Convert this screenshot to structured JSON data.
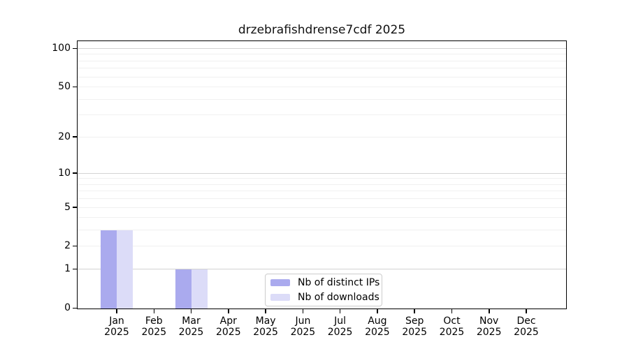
{
  "title": "drzebrafishdrense7cdf 2025",
  "chart_data": {
    "type": "bar",
    "title": "drzebrafishdrense7cdf 2025",
    "categories": [
      "Jan 2025",
      "Feb 2025",
      "Mar 2025",
      "Apr 2025",
      "May 2025",
      "Jun 2025",
      "Jul 2025",
      "Aug 2025",
      "Sep 2025",
      "Oct 2025",
      "Nov 2025",
      "Dec 2025"
    ],
    "series": [
      {
        "name": "Nb of distinct IPs",
        "color": "#aaaaee",
        "values": [
          3,
          0,
          1,
          0,
          0,
          0,
          0,
          0,
          0,
          0,
          0,
          0
        ]
      },
      {
        "name": "Nb of downloads",
        "color": "#dcdcf8",
        "values": [
          3,
          0,
          1,
          0,
          0,
          0,
          0,
          0,
          0,
          0,
          0,
          0
        ]
      }
    ],
    "xlabel": "",
    "ylabel": "",
    "yscale": "log1p",
    "ylim": [
      0,
      116
    ],
    "y_ticks": [
      0,
      1,
      2,
      5,
      10,
      20,
      50,
      100
    ],
    "y_major_gridlines": [
      1,
      10,
      100
    ],
    "y_minor_gridlines": [
      2,
      3,
      4,
      5,
      6,
      7,
      8,
      9,
      20,
      30,
      40,
      50,
      60,
      70,
      80,
      90
    ],
    "grid": true,
    "legend_position": "inside-bottom-center"
  },
  "colors": {
    "background": "#ffffff",
    "axis": "#000000",
    "grid_major": "#d3d3d3",
    "grid_minor": "#f0f0f0",
    "legend_border": "#cccccc",
    "bar_distinct_ips": "#aaaaee",
    "bar_downloads": "#dcdcf8"
  }
}
